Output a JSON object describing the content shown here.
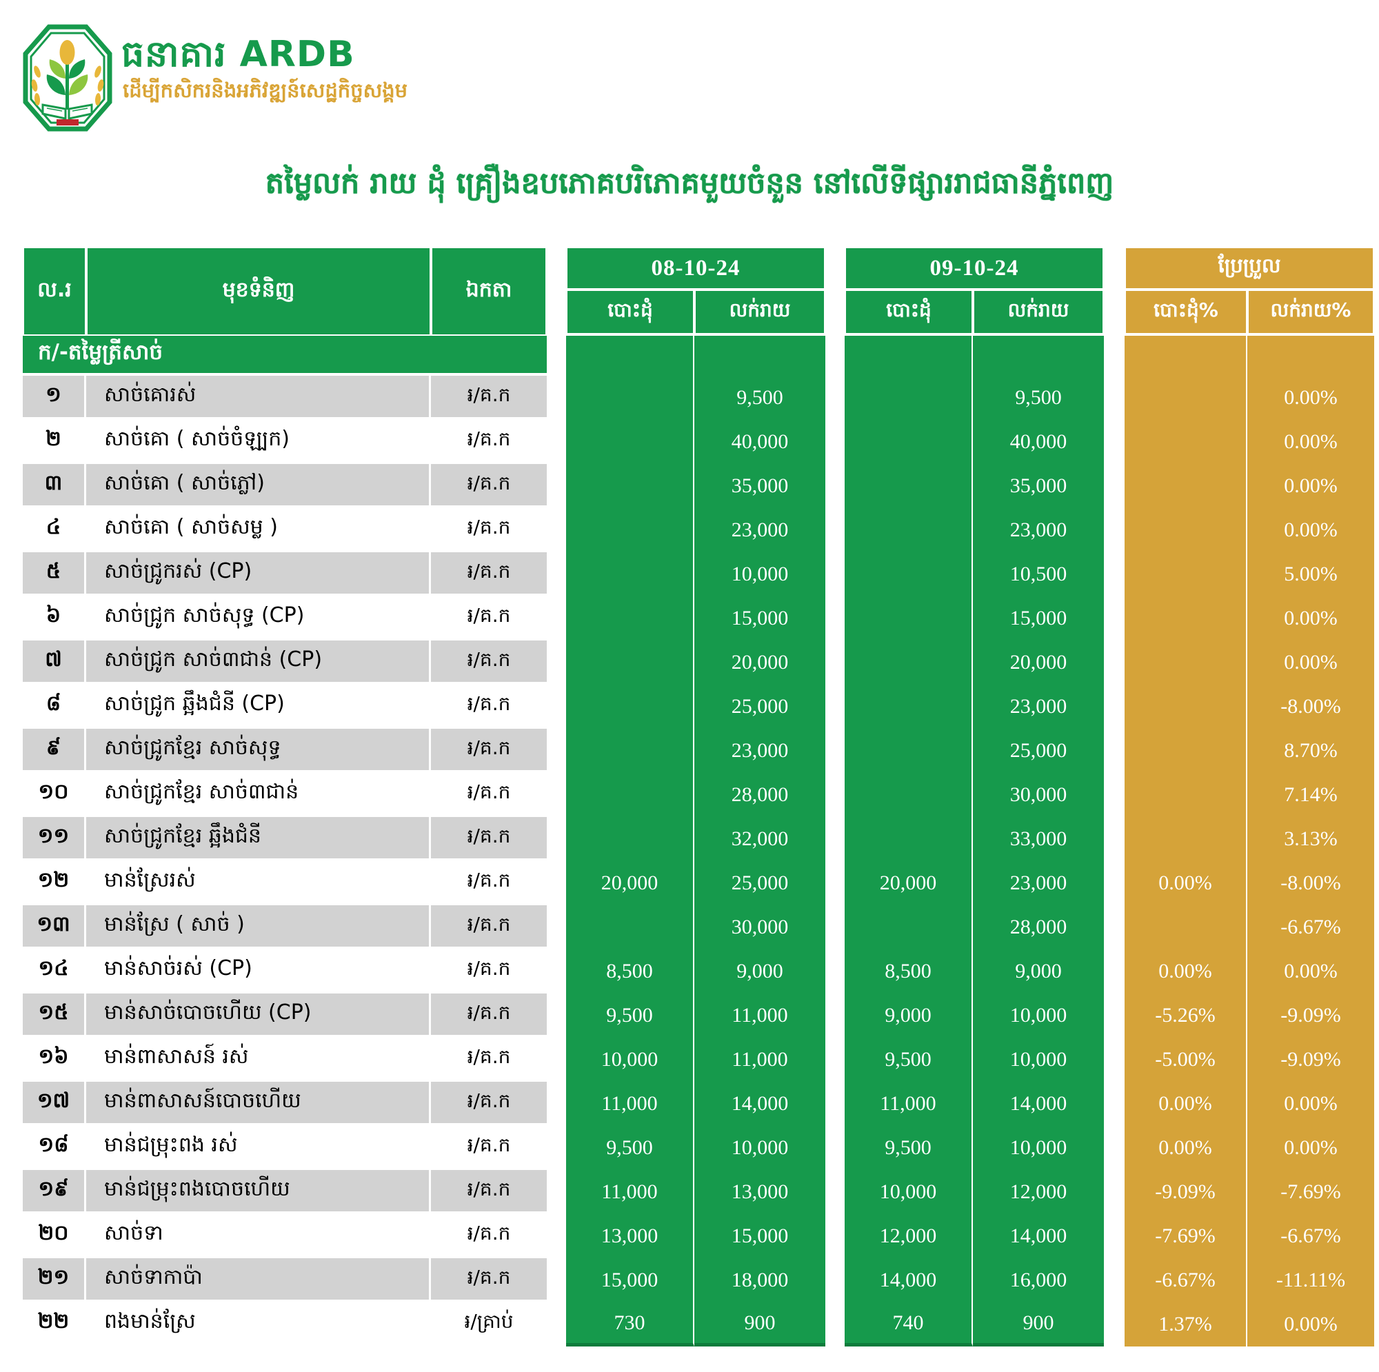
{
  "brand": {
    "name": "ធនាគារ ARDB",
    "tagline": "ដើម្បីកសិករនិងអភិវឌ្ឍន៍សេដ្ឋកិច្ចសង្គម"
  },
  "title": "តម្លៃលក់ រាយ ដុំ គ្រឿងឧបភោគបរិភោគមួយចំនួន នៅលើទីផ្សាររាជធានីភ្នំពេញ",
  "colors": {
    "green": "#169a4c",
    "gold": "#d5a339",
    "gray": "#d2d2d2",
    "logo_red": "#c1272d",
    "logo_light_green": "#8dc63f",
    "logo_gold": "#e8b73a"
  },
  "table": {
    "headers": {
      "no": "ល.រ",
      "product": "មុខទំនិញ",
      "unit": "ឯកតា",
      "date1": "08-10-24",
      "date2": "09-10-24",
      "change": "ប្រែប្រួល",
      "wholesale": "បោះដុំ",
      "retail": "លក់រាយ",
      "wholesale_pct": "បោះដុំ%",
      "retail_pct": "លក់រាយ%"
    },
    "section": "ក/-តម្លៃត្រីសាច់",
    "rows": [
      {
        "no": "១",
        "product": "សាច់គោរស់",
        "unit": "៛/គ.ក",
        "d1w": "",
        "d1r": "9,500",
        "d2w": "",
        "d2r": "9,500",
        "cw": "",
        "cr": "0.00%"
      },
      {
        "no": "២",
        "product": "សាច់គោ ( សាច់ចំឡ្បក)",
        "unit": "៛/គ.ក",
        "d1w": "",
        "d1r": "40,000",
        "d2w": "",
        "d2r": "40,000",
        "cw": "",
        "cr": "0.00%"
      },
      {
        "no": "៣",
        "product": "សាច់គោ ( សាច់ភ្លៅ)",
        "unit": "៛/គ.ក",
        "d1w": "",
        "d1r": "35,000",
        "d2w": "",
        "d2r": "35,000",
        "cw": "",
        "cr": "0.00%"
      },
      {
        "no": "៤",
        "product": "សាច់គោ ( សាច់សម្ល )",
        "unit": "៛/គ.ក",
        "d1w": "",
        "d1r": "23,000",
        "d2w": "",
        "d2r": "23,000",
        "cw": "",
        "cr": "0.00%"
      },
      {
        "no": "៥",
        "product": "សាច់ជ្រូករស់ (CP)",
        "unit": "៛/គ.ក",
        "d1w": "",
        "d1r": "10,000",
        "d2w": "",
        "d2r": "10,500",
        "cw": "",
        "cr": "5.00%"
      },
      {
        "no": "៦",
        "product": "សាច់ជ្រូក សាច់សុទ្ធ (CP)",
        "unit": "៛/គ.ក",
        "d1w": "",
        "d1r": "15,000",
        "d2w": "",
        "d2r": "15,000",
        "cw": "",
        "cr": "0.00%"
      },
      {
        "no": "៧",
        "product": "សាច់ជ្រូក សាច់៣ជាន់ (CP)",
        "unit": "៛/គ.ក",
        "d1w": "",
        "d1r": "20,000",
        "d2w": "",
        "d2r": "20,000",
        "cw": "",
        "cr": "0.00%"
      },
      {
        "no": "៨",
        "product": "សាច់ជ្រូក ឆ្អឹងជំនី (CP)",
        "unit": "៛/គ.ក",
        "d1w": "",
        "d1r": "25,000",
        "d2w": "",
        "d2r": "23,000",
        "cw": "",
        "cr": "-8.00%"
      },
      {
        "no": "៩",
        "product": "សាច់ជ្រូកខ្មែរ សាច់សុទ្ធ",
        "unit": "៛/គ.ក",
        "d1w": "",
        "d1r": "23,000",
        "d2w": "",
        "d2r": "25,000",
        "cw": "",
        "cr": "8.70%"
      },
      {
        "no": "១០",
        "product": "សាច់ជ្រូកខ្មែរ សាច់៣ជាន់",
        "unit": "៛/គ.ក",
        "d1w": "",
        "d1r": "28,000",
        "d2w": "",
        "d2r": "30,000",
        "cw": "",
        "cr": "7.14%"
      },
      {
        "no": "១១",
        "product": "សាច់ជ្រូកខ្មែរ ឆ្អឹងជំនី",
        "unit": "៛/គ.ក",
        "d1w": "",
        "d1r": "32,000",
        "d2w": "",
        "d2r": "33,000",
        "cw": "",
        "cr": "3.13%"
      },
      {
        "no": "១២",
        "product": "មាន់ស្រែរស់",
        "unit": "៛/គ.ក",
        "d1w": "20,000",
        "d1r": "25,000",
        "d2w": "20,000",
        "d2r": "23,000",
        "cw": "0.00%",
        "cr": "-8.00%"
      },
      {
        "no": "១៣",
        "product": "មាន់ស្រែ ( សាច់ )",
        "unit": "៛/គ.ក",
        "d1w": "",
        "d1r": "30,000",
        "d2w": "",
        "d2r": "28,000",
        "cw": "",
        "cr": "-6.67%"
      },
      {
        "no": "១៤",
        "product": "មាន់សាច់រស់ (CP)",
        "unit": "៛/គ.ក",
        "d1w": "8,500",
        "d1r": "9,000",
        "d2w": "8,500",
        "d2r": "9,000",
        "cw": "0.00%",
        "cr": "0.00%"
      },
      {
        "no": "១៥",
        "product": "មាន់សាច់បោចហើយ (CP)",
        "unit": "៛/គ.ក",
        "d1w": "9,500",
        "d1r": "11,000",
        "d2w": "9,000",
        "d2r": "10,000",
        "cw": "-5.26%",
        "cr": "-9.09%"
      },
      {
        "no": "១៦",
        "product": "មាន់ពាសាសន៍ រស់",
        "unit": "៛/គ.ក",
        "d1w": "10,000",
        "d1r": "11,000",
        "d2w": "9,500",
        "d2r": "10,000",
        "cw": "-5.00%",
        "cr": "-9.09%"
      },
      {
        "no": "១៧",
        "product": "មាន់ពាសាសន៍បោចហើយ",
        "unit": "៛/គ.ក",
        "d1w": "11,000",
        "d1r": "14,000",
        "d2w": "11,000",
        "d2r": "14,000",
        "cw": "0.00%",
        "cr": "0.00%"
      },
      {
        "no": "១៨",
        "product": "មាន់ជម្រុះពង រស់",
        "unit": "៛/គ.ក",
        "d1w": "9,500",
        "d1r": "10,000",
        "d2w": "9,500",
        "d2r": "10,000",
        "cw": "0.00%",
        "cr": "0.00%"
      },
      {
        "no": "១៩",
        "product": "មាន់ជម្រុះពងបោចហើយ",
        "unit": "៛/គ.ក",
        "d1w": "11,000",
        "d1r": "13,000",
        "d2w": "10,000",
        "d2r": "12,000",
        "cw": "-9.09%",
        "cr": "-7.69%"
      },
      {
        "no": "២០",
        "product": "សាច់ទា",
        "unit": "៛/គ.ក",
        "d1w": "13,000",
        "d1r": "15,000",
        "d2w": "12,000",
        "d2r": "14,000",
        "cw": "-7.69%",
        "cr": "-6.67%"
      },
      {
        "no": "២១",
        "product": "សាច់ទាកាប៉ា",
        "unit": "៛/គ.ក",
        "d1w": "15,000",
        "d1r": "18,000",
        "d2w": "14,000",
        "d2r": "16,000",
        "cw": "-6.67%",
        "cr": "-11.11%"
      },
      {
        "no": "២២",
        "product": "ពងមាន់ស្រែ",
        "unit": "៛/គ្រាប់",
        "d1w": "730",
        "d1r": "900",
        "d2w": "740",
        "d2r": "900",
        "cw": "1.37%",
        "cr": "0.00%"
      }
    ]
  }
}
